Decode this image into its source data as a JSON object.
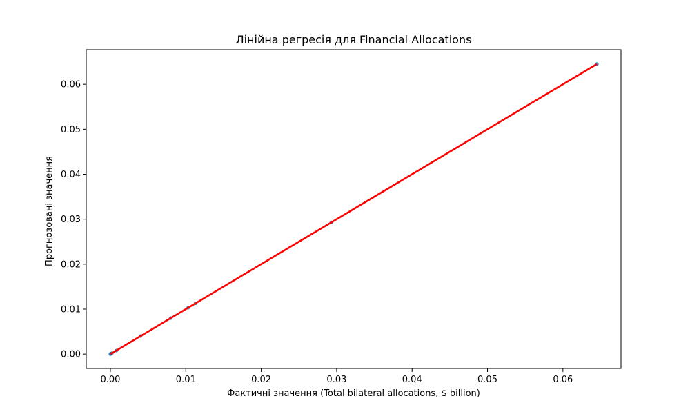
{
  "chart_data": {
    "type": "scatter",
    "title": "Лінійна регресія для Financial Allocations",
    "xlabel": "Фактичні значення (Total bilateral allocations, $ billion)",
    "ylabel": "Прогнозовані значення",
    "xlim": [
      -0.0032,
      0.0677
    ],
    "ylim": [
      -0.0032,
      0.0677
    ],
    "xticks": [
      0.0,
      0.01,
      0.02,
      0.03,
      0.04,
      0.05,
      0.06
    ],
    "yticks": [
      0.0,
      0.01,
      0.02,
      0.03,
      0.04,
      0.05,
      0.06
    ],
    "xtick_labels": [
      "0.00",
      "0.01",
      "0.02",
      "0.03",
      "0.04",
      "0.05",
      "0.06"
    ],
    "ytick_labels": [
      "0.00",
      "0.01",
      "0.02",
      "0.03",
      "0.04",
      "0.05",
      "0.06"
    ],
    "grid": false,
    "series": [
      {
        "kind": "points",
        "color": "#1f77b4",
        "x": [
          0.0,
          0.0001,
          0.0002,
          0.0008,
          0.004,
          0.008,
          0.0103,
          0.0113,
          0.0293,
          0.0645
        ],
        "y": [
          0.0,
          0.0001,
          0.0002,
          0.0008,
          0.004,
          0.008,
          0.0103,
          0.0113,
          0.0293,
          0.0645
        ]
      },
      {
        "kind": "line",
        "color": "#ff0000",
        "x": [
          0.0,
          0.0645
        ],
        "y": [
          0.0,
          0.0645
        ]
      }
    ]
  }
}
